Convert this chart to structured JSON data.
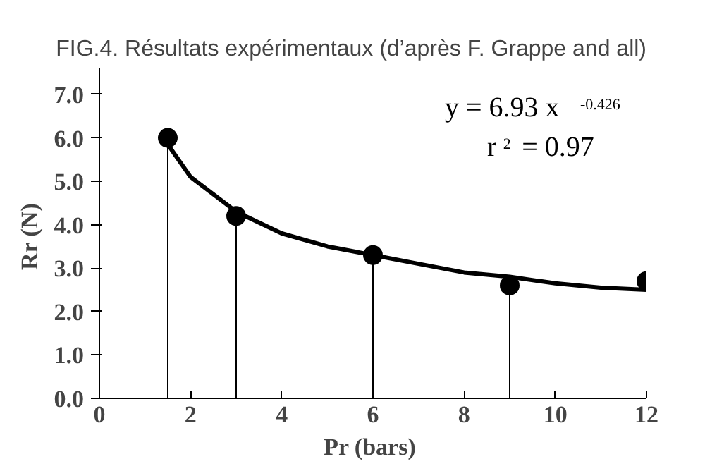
{
  "chart_data": {
    "type": "lollipop",
    "title": "FIG.4. Résultats expérimentaux (d’après F. Grappe and all)",
    "xlabel": "Pr  (bars)",
    "ylabel": "Rr  (N)",
    "x": [
      1.5,
      3,
      6,
      9,
      12
    ],
    "series": [
      {
        "color": "#000000",
        "marker": "circle",
        "values": [
          6.0,
          4.2,
          3.3,
          2.6,
          2.7
        ]
      },
      {
        "type": "line",
        "color": "#000000",
        "x": [
          1.5,
          2,
          3,
          4,
          5,
          6,
          7,
          8,
          9,
          10,
          11,
          12
        ],
        "values": [
          5.85,
          5.1,
          4.3,
          3.8,
          3.5,
          3.3,
          3.1,
          2.9,
          2.8,
          2.65,
          2.55,
          2.5
        ]
      }
    ],
    "xlim": [
      0,
      12
    ],
    "xticks": [
      0,
      2,
      4,
      6,
      8,
      10,
      12
    ],
    "ylim": [
      0,
      7.6
    ],
    "yticks": [
      {
        "value": 0,
        "label": "0.0"
      },
      {
        "value": 1,
        "label": "1.0"
      },
      {
        "value": 2,
        "label": "2.0"
      },
      {
        "value": 3,
        "label": "3.0"
      },
      {
        "value": 4,
        "label": "4.0"
      },
      {
        "value": 5,
        "label": "5.0"
      },
      {
        "value": 6,
        "label": "6.0"
      },
      {
        "value": 7,
        "label": "7.0"
      }
    ],
    "annotations": [
      "y = 6.93 x$^{-0.426}$",
      "r$^{2}$ = 0.97"
    ],
    "grid": false
  }
}
